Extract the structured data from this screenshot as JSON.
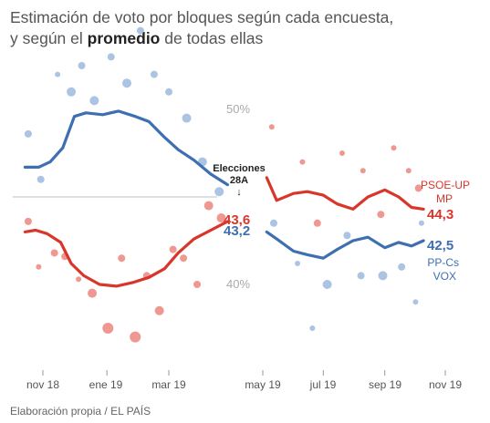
{
  "title": {
    "line1": "Estimación de voto por bloques según cada encuesta,",
    "line2_pre": "y según el ",
    "line2_bold": "promedio",
    "line2_post": " de todas ellas"
  },
  "footer": "Elaboración propia / EL PAÍS",
  "colors": {
    "red": "#d9362b",
    "blue": "#3e6fb0",
    "red_dot": "#e8766c",
    "blue_dot": "#8fb0da",
    "ref": "#cccccc"
  },
  "chart_data": {
    "type": "scatter",
    "ylim": [
      35,
      55
    ],
    "yticks": [
      {
        "value": 40,
        "label": "40%"
      },
      {
        "value": 50,
        "label": "50%"
      }
    ],
    "reference_line": 45,
    "event": {
      "date": "2019-04-28",
      "label_line1": "Elecciones",
      "label_line2": "28A",
      "arrow": "↓"
    },
    "xticks_left": [
      {
        "date": "2018-11-01",
        "label": "nov 18"
      },
      {
        "date": "2019-01-01",
        "label": "ene 19"
      },
      {
        "date": "2019-03-01",
        "label": "mar 19"
      }
    ],
    "xticks_right": [
      {
        "date": "2019-05-01",
        "label": "may 19"
      },
      {
        "date": "2019-07-01",
        "label": "jul 19"
      },
      {
        "date": "2019-09-01",
        "label": "sep 19"
      },
      {
        "date": "2019-11-01",
        "label": "nov 19"
      }
    ],
    "series": [
      {
        "name": "PSOE-UP MP",
        "name_line1": "PSOE-UP",
        "name_line2": "MP",
        "color": "#d9362b",
        "results": [
          {
            "label": "43,6",
            "value": 43.6
          },
          {
            "label": "44,3",
            "value": 44.3
          }
        ],
        "average_left": [
          [
            "2018-10-15",
            43.0
          ],
          [
            "2018-10-25",
            43.1
          ],
          [
            "2018-11-05",
            42.9
          ],
          [
            "2018-11-18",
            42.4
          ],
          [
            "2018-11-28",
            41.2
          ],
          [
            "2018-12-10",
            40.5
          ],
          [
            "2018-12-25",
            40.0
          ],
          [
            "2019-01-10",
            39.9
          ],
          [
            "2019-01-25",
            40.1
          ],
          [
            "2019-02-10",
            40.4
          ],
          [
            "2019-02-25",
            40.9
          ],
          [
            "2019-03-10",
            41.8
          ],
          [
            "2019-03-25",
            42.6
          ],
          [
            "2019-04-10",
            43.1
          ],
          [
            "2019-04-26",
            43.6
          ]
        ],
        "average_right": [
          [
            "2019-05-05",
            46.1
          ],
          [
            "2019-05-15",
            44.8
          ],
          [
            "2019-06-01",
            45.2
          ],
          [
            "2019-06-15",
            45.3
          ],
          [
            "2019-07-01",
            45.1
          ],
          [
            "2019-07-15",
            44.6
          ],
          [
            "2019-07-31",
            44.3
          ],
          [
            "2019-08-15",
            45.0
          ],
          [
            "2019-09-01",
            45.4
          ],
          [
            "2019-09-15",
            45.0
          ],
          [
            "2019-09-28",
            44.4
          ],
          [
            "2019-10-10",
            44.3
          ]
        ],
        "polls": [
          [
            "2018-10-18",
            43.6,
            4
          ],
          [
            "2018-10-28",
            41.0,
            3
          ],
          [
            "2018-11-12",
            41.8,
            4
          ],
          [
            "2018-11-22",
            41.6,
            4
          ],
          [
            "2018-12-05",
            40.3,
            3
          ],
          [
            "2018-12-18",
            39.5,
            5
          ],
          [
            "2019-01-02",
            37.5,
            6
          ],
          [
            "2019-01-15",
            41.5,
            4
          ],
          [
            "2019-01-28",
            37.0,
            6
          ],
          [
            "2019-02-08",
            40.5,
            4
          ],
          [
            "2019-02-20",
            38.5,
            5
          ],
          [
            "2019-03-05",
            42.0,
            4
          ],
          [
            "2019-03-15",
            41.5,
            4
          ],
          [
            "2019-03-28",
            40.0,
            4
          ],
          [
            "2019-04-08",
            44.5,
            5
          ],
          [
            "2019-04-20",
            43.8,
            5
          ],
          [
            "2019-05-10",
            49.0,
            3
          ],
          [
            "2019-06-10",
            47.0,
            3
          ],
          [
            "2019-06-25",
            43.5,
            4
          ],
          [
            "2019-07-20",
            47.5,
            3
          ],
          [
            "2019-08-10",
            46.5,
            3
          ],
          [
            "2019-08-28",
            44.0,
            4
          ],
          [
            "2019-09-10",
            47.8,
            3
          ],
          [
            "2019-09-25",
            46.5,
            3
          ],
          [
            "2019-10-05",
            45.5,
            4
          ]
        ]
      },
      {
        "name": "PP-Cs VOX",
        "name_line1": "PP-Cs",
        "name_line2": "VOX",
        "color": "#3e6fb0",
        "results": [
          {
            "label": "43,2",
            "value": 43.2
          },
          {
            "label": "42,5",
            "value": 42.5
          }
        ],
        "average_left": [
          [
            "2018-10-15",
            46.7
          ],
          [
            "2018-10-28",
            46.7
          ],
          [
            "2018-11-08",
            47.0
          ],
          [
            "2018-11-20",
            47.8
          ],
          [
            "2018-12-01",
            49.6
          ],
          [
            "2018-12-12",
            49.8
          ],
          [
            "2018-12-28",
            49.7
          ],
          [
            "2019-01-12",
            49.9
          ],
          [
            "2019-01-28",
            49.6
          ],
          [
            "2019-02-10",
            49.3
          ],
          [
            "2019-02-25",
            48.4
          ],
          [
            "2019-03-10",
            47.7
          ],
          [
            "2019-03-25",
            47.1
          ],
          [
            "2019-04-10",
            46.3
          ],
          [
            "2019-04-26",
            45.7
          ]
        ],
        "average_right": [
          [
            "2019-05-05",
            43.0
          ],
          [
            "2019-05-15",
            42.6
          ],
          [
            "2019-06-01",
            41.9
          ],
          [
            "2019-06-15",
            41.7
          ],
          [
            "2019-07-01",
            41.5
          ],
          [
            "2019-07-15",
            42.0
          ],
          [
            "2019-07-31",
            42.5
          ],
          [
            "2019-08-15",
            42.7
          ],
          [
            "2019-09-01",
            42.1
          ],
          [
            "2019-09-15",
            42.4
          ],
          [
            "2019-09-28",
            42.2
          ],
          [
            "2019-10-10",
            42.5
          ]
        ],
        "polls": [
          [
            "2018-10-18",
            48.6,
            4
          ],
          [
            "2018-10-30",
            46.0,
            4
          ],
          [
            "2018-11-15",
            52.0,
            3
          ],
          [
            "2018-11-28",
            51.0,
            5
          ],
          [
            "2018-12-08",
            52.5,
            4
          ],
          [
            "2018-12-20",
            50.5,
            5
          ],
          [
            "2019-01-05",
            53.0,
            4
          ],
          [
            "2019-01-20",
            51.5,
            5
          ],
          [
            "2019-02-02",
            54.5,
            4
          ],
          [
            "2019-02-15",
            52.0,
            4
          ],
          [
            "2019-03-01",
            51.0,
            4
          ],
          [
            "2019-03-18",
            49.5,
            5
          ],
          [
            "2019-04-02",
            47.0,
            5
          ],
          [
            "2019-04-18",
            45.3,
            5
          ],
          [
            "2019-05-12",
            43.5,
            4
          ],
          [
            "2019-06-05",
            41.2,
            3
          ],
          [
            "2019-06-20",
            37.5,
            3
          ],
          [
            "2019-07-05",
            40.0,
            5
          ],
          [
            "2019-07-25",
            42.8,
            4
          ],
          [
            "2019-08-08",
            40.5,
            4
          ],
          [
            "2019-08-30",
            40.5,
            5
          ],
          [
            "2019-09-18",
            41.0,
            4
          ],
          [
            "2019-10-02",
            39.0,
            3
          ],
          [
            "2019-10-08",
            43.5,
            3
          ]
        ]
      }
    ]
  }
}
